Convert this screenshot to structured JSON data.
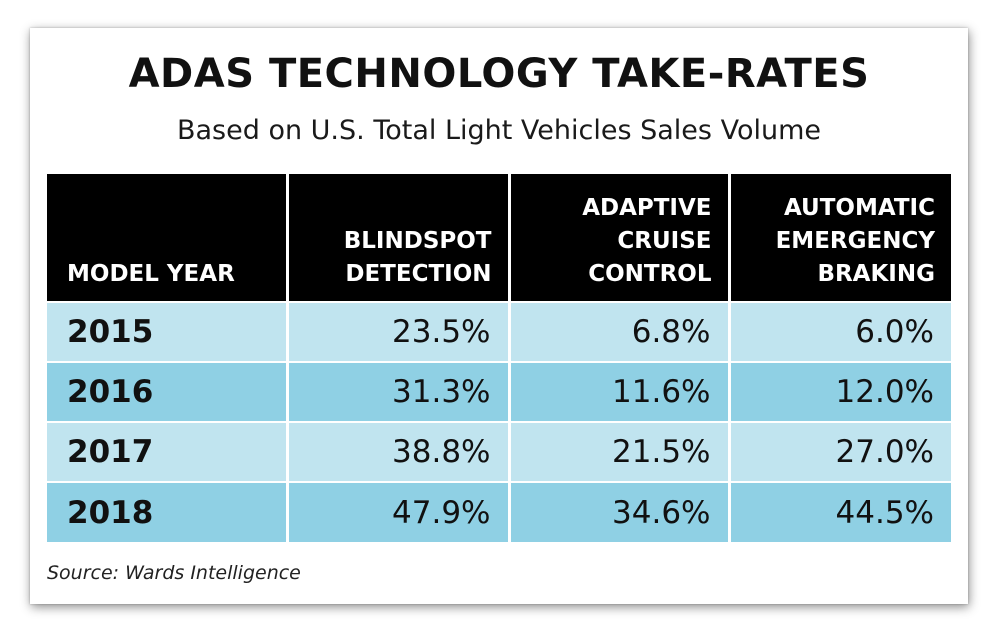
{
  "title": "ADAS TECHNOLOGY TAKE-RATES",
  "subtitle": "Based on U.S. Total Light Vehicles Sales Volume",
  "source": "Source: Wards Intelligence",
  "colors": {
    "header_bg": "#000000",
    "header_text": "#ffffff",
    "row_light": "#c0e4ef",
    "row_dark": "#8fd0e4",
    "text": "#111111"
  },
  "chart_data": {
    "type": "table",
    "title": "ADAS TECHNOLOGY TAKE-RATES",
    "subtitle": "Based on U.S. Total Light Vehicles Sales Volume",
    "columns": [
      "MODEL YEAR",
      "BLINDSPOT\nDETECTION",
      "ADAPTIVE\nCRUISE\nCONTROL",
      "AUTOMATIC\nEMERGENCY\nBRAKING"
    ],
    "rows": [
      [
        "2015",
        "23.5%",
        "6.8%",
        "6.0%"
      ],
      [
        "2016",
        "31.3%",
        "11.6%",
        "12.0%"
      ],
      [
        "2017",
        "38.8%",
        "21.5%",
        "27.0%"
      ],
      [
        "2018",
        "47.9%",
        "34.6%",
        "44.5%"
      ]
    ]
  }
}
